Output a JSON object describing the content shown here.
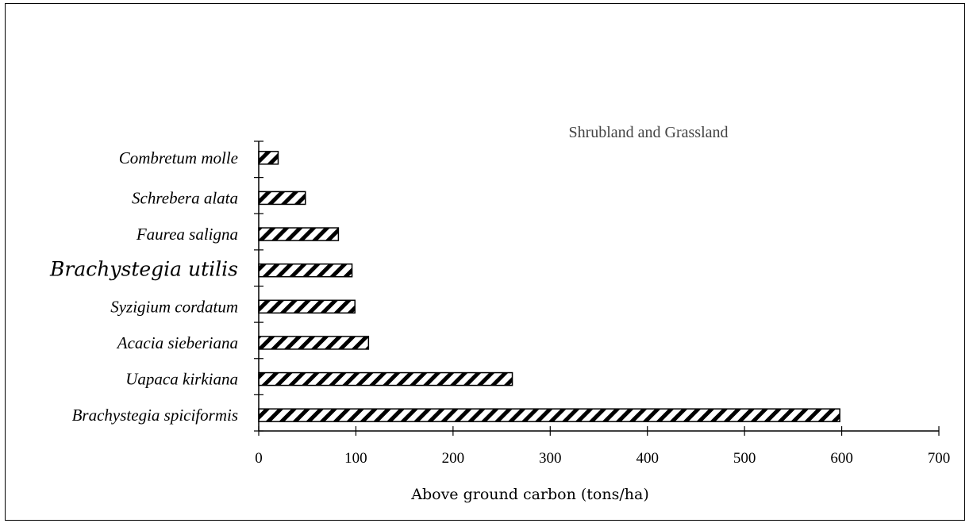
{
  "chart_data": {
    "type": "bar",
    "orientation": "horizontal",
    "title": "Shrubland and Grassland",
    "xlabel": "Above ground carbon (tons/ha)",
    "ylabel": "",
    "categories": [
      "Combretum molle",
      "Schrebera alata",
      "Faurea saligna",
      "Brachystegia utilis",
      "Syzigium cordatum",
      "Acacia sieberiana",
      "Uapaca kirkiana",
      "Brachystegia spiciformis"
    ],
    "values": [
      20,
      48,
      82,
      96,
      99,
      113,
      261,
      598
    ],
    "xlim": [
      0,
      700
    ],
    "xticks": [
      "0",
      "100",
      "200",
      "300",
      "400",
      "500",
      "600",
      "700"
    ],
    "grid": false,
    "legend": "none",
    "bar_fill": "diagonal-hatch",
    "bar_color": "#000000"
  }
}
